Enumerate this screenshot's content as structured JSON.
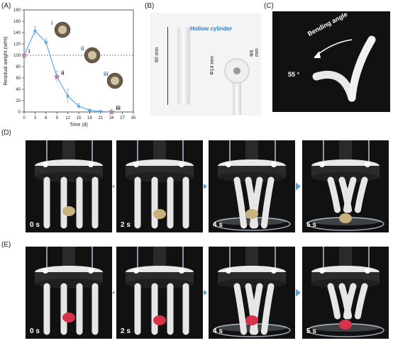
{
  "panels": {
    "A": "(A)",
    "B": "(B)",
    "C": "(C)",
    "D": "(D)",
    "E": "(E)"
  },
  "chart_data": {
    "type": "line",
    "xlabel": "Time (d)",
    "ylabel": "Residual weight (wt%)",
    "xlim": [
      0,
      30
    ],
    "ylim": [
      0,
      180
    ],
    "xticks": [
      "0",
      "3",
      "6",
      "9",
      "12",
      "15",
      "18",
      "21",
      "24",
      "27",
      "30"
    ],
    "yticks": [
      "0",
      "20",
      "40",
      "60",
      "80",
      "100",
      "120",
      "140",
      "160",
      "180"
    ],
    "reference_line": 100,
    "series": [
      {
        "color": "#5aaee0",
        "x": [
          0,
          3,
          6,
          9,
          12,
          15,
          18,
          21,
          24
        ],
        "y": [
          100,
          143,
          123,
          62,
          28,
          10,
          3,
          1,
          0
        ],
        "err": [
          0,
          8,
          6,
          10,
          12,
          5,
          2,
          1,
          0
        ]
      }
    ],
    "markers": [
      {
        "label": "i",
        "x": 0,
        "y": 100
      },
      {
        "label": "ii",
        "x": 9,
        "y": 62
      },
      {
        "label": "iii",
        "x": 24,
        "y": 0
      }
    ],
    "insets": [
      {
        "label": "i"
      },
      {
        "label": "ii"
      },
      {
        "label": "iii"
      }
    ]
  },
  "panel_b": {
    "title": "Hollow cylinder",
    "length": "60 mm",
    "outer": "Φ14 mm",
    "inner": "Φ6 mm"
  },
  "panel_c": {
    "title": "Bending angle",
    "angle": "55 °"
  },
  "row_d": {
    "times": [
      "0 s",
      "2 s",
      "4 s",
      "5 s"
    ],
    "object_color": "#c9b27e"
  },
  "row_e": {
    "times": [
      "0 s",
      "2 s",
      "4 s",
      "5 s"
    ],
    "object_color": "#d8324a"
  }
}
